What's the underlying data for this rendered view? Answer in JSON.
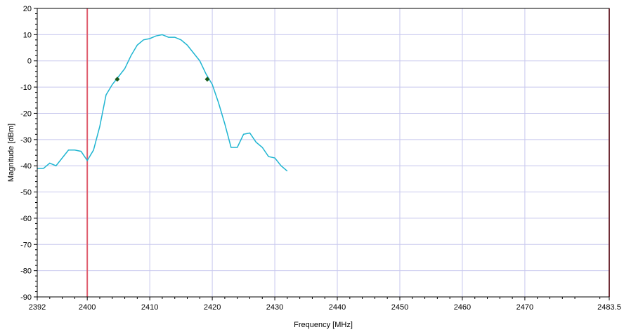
{
  "chart_data": {
    "type": "line",
    "xlabel": "Frequency [MHz]",
    "ylabel": "Magnitude [dBm]",
    "xlim": [
      2392,
      2483.5
    ],
    "ylim": [
      -90,
      20
    ],
    "x_ticks": [
      2392,
      2400,
      2410,
      2420,
      2430,
      2440,
      2450,
      2460,
      2470,
      2483.5
    ],
    "x_tick_labels": [
      "2392",
      "2400",
      "2410",
      "2420",
      "2430",
      "2440",
      "2450",
      "2460",
      "2470",
      "2483.5"
    ],
    "y_ticks": [
      20,
      10,
      0,
      -10,
      -20,
      -30,
      -40,
      -50,
      -60,
      -70,
      -80,
      -90
    ],
    "y_tick_labels": [
      "20",
      "10",
      "0",
      "-10",
      "-20",
      "-30",
      "-40",
      "-50",
      "-60",
      "-70",
      "-80",
      "-90"
    ],
    "grid": true,
    "colors": {
      "trace": "#1fb5d1",
      "marker_line": "#e05c6e",
      "grid": "#c8c8ee",
      "marker_point": "#1a5a1a"
    },
    "vertical_markers": [
      2400,
      2483.5
    ],
    "marker_points": [
      {
        "x": 2404.8,
        "y": -7
      },
      {
        "x": 2419.2,
        "y": -7
      }
    ],
    "series": [
      {
        "x": [
          2392,
          2393,
          2394,
          2395,
          2396,
          2397,
          2398,
          2399,
          2400,
          2401,
          2402,
          2403,
          2404,
          2405,
          2406,
          2407,
          2408,
          2409,
          2410,
          2411,
          2412,
          2413,
          2414,
          2415,
          2416,
          2417,
          2418,
          2419,
          2420,
          2421,
          2422,
          2423,
          2424,
          2425,
          2426,
          2427,
          2428,
          2429,
          2430,
          2431,
          2432
        ],
        "values": [
          -41,
          -41,
          -39,
          -40,
          -37,
          -34,
          -34,
          -34.5,
          -38,
          -34,
          -25,
          -13,
          -9,
          -6,
          -3,
          2,
          6,
          8,
          8.5,
          9.5,
          10,
          9,
          9,
          8,
          6,
          3,
          0,
          -5,
          -9,
          -16,
          -24,
          -33,
          -33,
          -28,
          -27.5,
          -31,
          -33,
          -36.5,
          -37,
          -40,
          -42
        ]
      }
    ]
  }
}
